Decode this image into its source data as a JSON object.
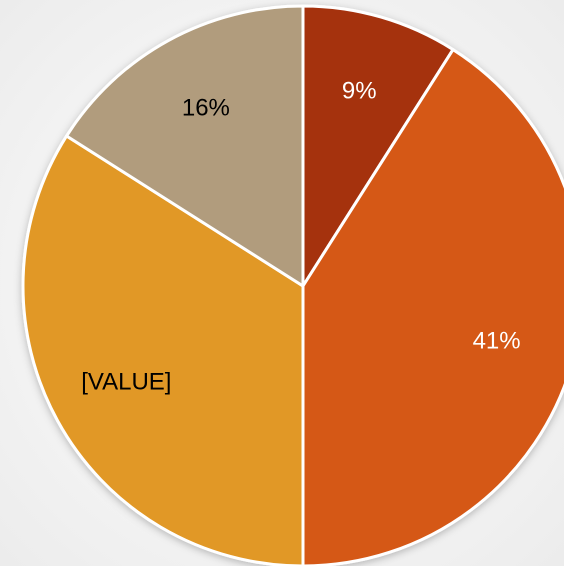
{
  "chart_data": {
    "type": "pie",
    "values": [
      9,
      41,
      34,
      16
    ],
    "value_labels": [
      "9%",
      "41%",
      "[VALUE]",
      "16%"
    ],
    "colors": [
      "#a5300f",
      "#d55816",
      "#e19825",
      "#b19c7d"
    ]
  }
}
